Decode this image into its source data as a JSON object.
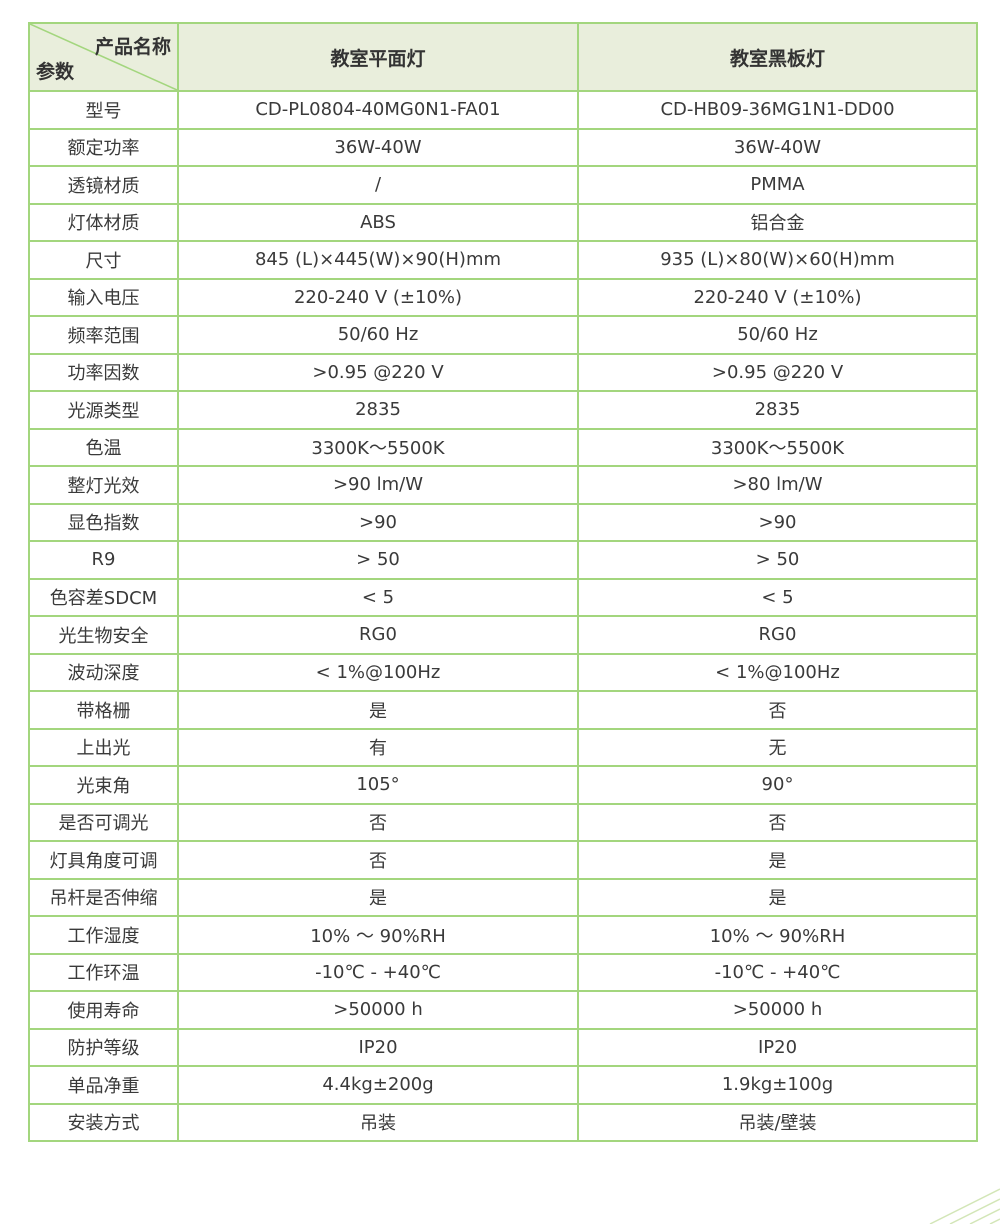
{
  "header": {
    "corner_top": "产品名称",
    "corner_bottom": "参数",
    "col1": "教室平面灯",
    "col2": "教室黑板灯"
  },
  "rows": [
    {
      "param": "型号",
      "a": "CD-PL0804-40MG0N1-FA01",
      "b": "CD-HB09-36MG1N1-DD00"
    },
    {
      "param": "额定功率",
      "a": "36W-40W",
      "b": "36W-40W"
    },
    {
      "param": "透镜材质",
      "a": "/",
      "b": "PMMA"
    },
    {
      "param": "灯体材质",
      "a": "ABS",
      "b": "铝合金"
    },
    {
      "param": "尺寸",
      "a": "845 (L)×445(W)×90(H)mm",
      "b": "935 (L)×80(W)×60(H)mm"
    },
    {
      "param": "输入电压",
      "a": "220-240 V (±10%)",
      "b": "220-240 V (±10%)"
    },
    {
      "param": "频率范围",
      "a": "50/60 Hz",
      "b": "50/60 Hz"
    },
    {
      "param": "功率因数",
      "a": ">0.95 @220 V",
      "b": ">0.95 @220 V"
    },
    {
      "param": "光源类型",
      "a": "2835",
      "b": "2835"
    },
    {
      "param": "色温",
      "a": "3300K～5500K",
      "b": "3300K～5500K"
    },
    {
      "param": "整灯光效",
      "a": ">90 lm/W",
      "b": ">80 lm/W"
    },
    {
      "param": "显色指数",
      "a": ">90",
      "b": ">90"
    },
    {
      "param": "R9",
      "a": "> 50",
      "b": "> 50"
    },
    {
      "param": "色容差SDCM",
      "a": "< 5",
      "b": "< 5"
    },
    {
      "param": "光生物安全",
      "a": "RG0",
      "b": "RG0"
    },
    {
      "param": "波动深度",
      "a": "< 1%@100Hz",
      "b": "< 1%@100Hz"
    },
    {
      "param": "带格栅",
      "a": "是",
      "b": "否"
    },
    {
      "param": "上出光",
      "a": "有",
      "b": "无"
    },
    {
      "param": "光束角",
      "a": "105°",
      "b": "90°"
    },
    {
      "param": "是否可调光",
      "a": "否",
      "b": "否"
    },
    {
      "param": "灯具角度可调",
      "a": "否",
      "b": "是"
    },
    {
      "param": "吊杆是否伸缩",
      "a": "是",
      "b": "是"
    },
    {
      "param": "工作湿度",
      "a": "10%  ～ 90%RH",
      "b": "10%  ～ 90%RH"
    },
    {
      "param": "工作环温",
      "a": "-10℃ - +40℃",
      "b": "-10℃ - +40℃"
    },
    {
      "param": "使用寿命",
      "a": ">50000 h",
      "b": ">50000 h"
    },
    {
      "param": "防护等级",
      "a": "IP20",
      "b": "IP20"
    },
    {
      "param": "单品净重",
      "a": "4.4kg±200g",
      "b": "1.9kg±100g"
    },
    {
      "param": "安装方式",
      "a": "吊装",
      "b": "吊装/壁装"
    }
  ]
}
